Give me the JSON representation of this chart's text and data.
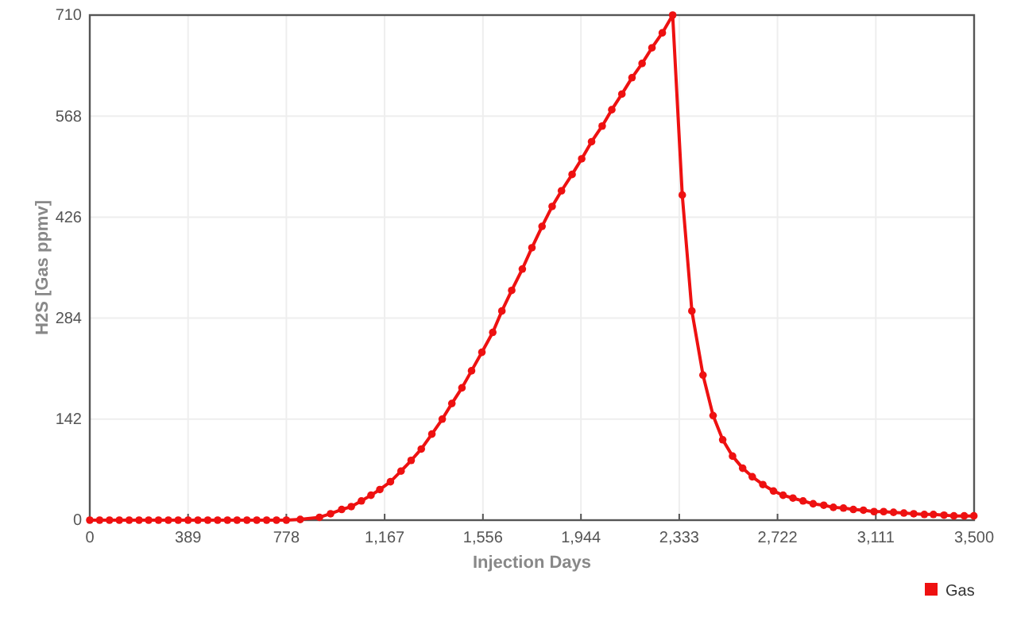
{
  "chart_data": {
    "type": "line",
    "xlabel": "Injection Days",
    "ylabel": "H2S [Gas ppmv]",
    "xlim": [
      0,
      3500
    ],
    "ylim": [
      0,
      710
    ],
    "xticks": [
      0,
      {
        "value": 389,
        "label": "389"
      },
      {
        "value": 778,
        "label": "778"
      },
      {
        "value": 1167,
        "label": "1,167"
      },
      {
        "value": 1556,
        "label": "1,556"
      },
      {
        "value": 1944,
        "label": "1,944"
      },
      {
        "value": 2333,
        "label": "2,333"
      },
      {
        "value": 2722,
        "label": "2,722"
      },
      {
        "value": 3111,
        "label": "3,111"
      },
      {
        "value": 3500,
        "label": "3,500"
      }
    ],
    "yticks": [
      0,
      142,
      284,
      426,
      568,
      710
    ],
    "grid": true,
    "legend": "bottom right",
    "marker": "circle",
    "line_style": "solid",
    "x": [
      0,
      39,
      78,
      117,
      156,
      195,
      233,
      272,
      311,
      350,
      389,
      428,
      467,
      506,
      545,
      583,
      622,
      661,
      700,
      739,
      778,
      833,
      909,
      953,
      997,
      1035,
      1075,
      1113,
      1148,
      1190,
      1232,
      1272,
      1312,
      1354,
      1395,
      1433,
      1473,
      1511,
      1552,
      1595,
      1631,
      1670,
      1712,
      1750,
      1790,
      1830,
      1867,
      1909,
      1947,
      1986,
      2028,
      2066,
      2106,
      2146,
      2186,
      2225,
      2266,
      2307,
      2345,
      2383,
      2427,
      2467,
      2505,
      2544,
      2584,
      2622,
      2664,
      2706,
      2744,
      2783,
      2823,
      2863,
      2905,
      2943,
      2983,
      3022,
      3062,
      3104,
      3142,
      3181,
      3222,
      3261,
      3303,
      3339,
      3381,
      3420,
      3461,
      3499
    ],
    "series": [
      {
        "name": "Gas",
        "color": "#ee1111",
        "values": [
          0,
          0,
          0,
          0,
          0,
          0,
          0,
          0,
          0,
          0,
          0,
          0,
          0,
          0,
          0,
          0,
          0,
          0,
          0,
          0,
          0,
          1,
          4,
          9,
          15,
          19,
          27,
          35,
          43,
          54,
          69,
          84,
          100,
          121,
          142,
          164,
          186,
          210,
          236,
          264,
          294,
          323,
          353,
          383,
          413,
          441,
          463,
          486,
          508,
          532,
          554,
          577,
          599,
          622,
          642,
          664,
          685,
          710,
          457,
          294,
          204,
          147,
          113,
          90,
          73,
          61,
          50,
          41,
          35,
          31,
          27,
          23,
          21,
          18,
          17,
          15,
          14,
          12,
          12,
          11,
          10,
          9,
          8,
          8,
          7,
          6,
          6,
          6
        ]
      }
    ]
  }
}
